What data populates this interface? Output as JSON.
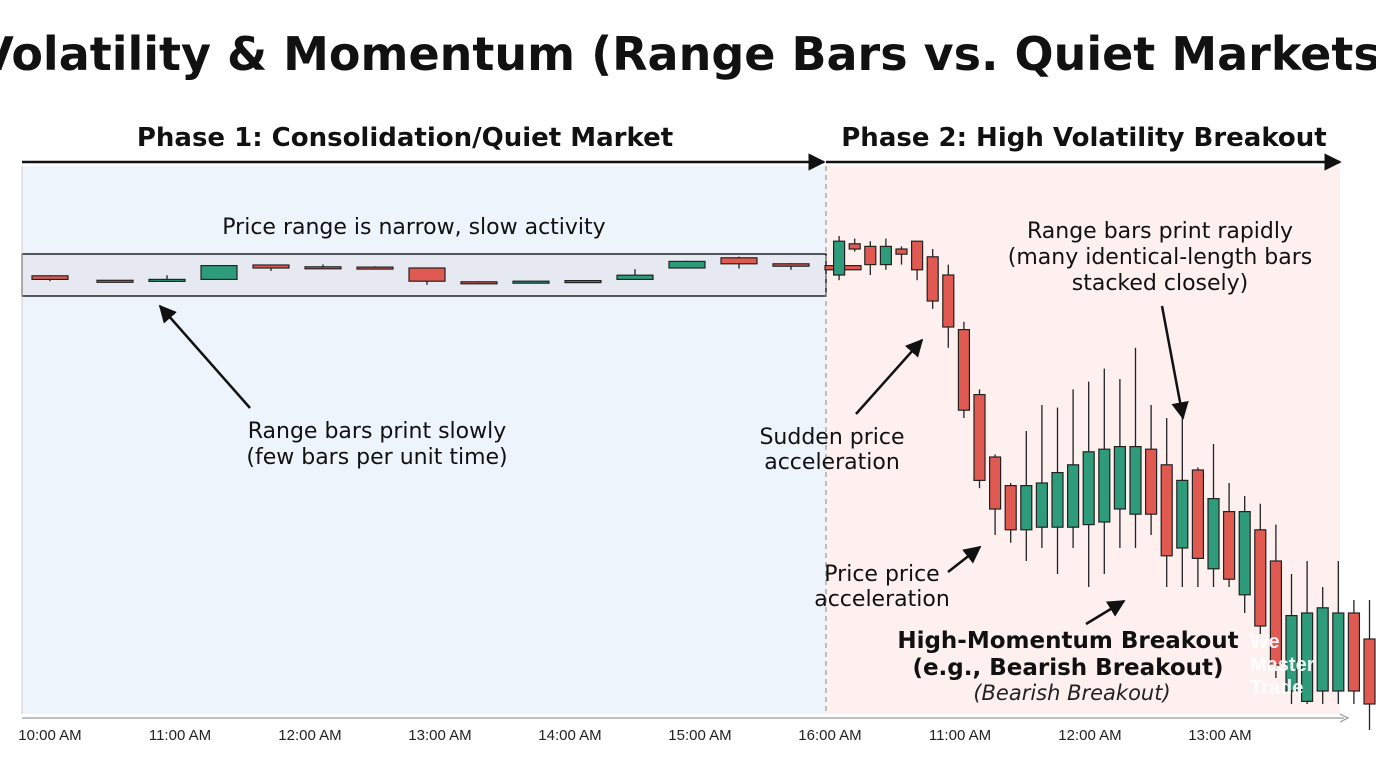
{
  "chart_data": {
    "type": "candlestick",
    "title": "Volatility & Momentum (Range Bars vs. Quiet Markets)",
    "colors": {
      "up": "#2e9c7a",
      "down": "#e05a52",
      "phase1_bg": "#eef4fb",
      "phase2_bg": "#fdf0ef",
      "band": "#e6e9f1"
    },
    "phases": [
      {
        "label": "Phase 1: Consolidation/Quiet Market"
      },
      {
        "label": "Phase 2: High Volatility Breakout"
      }
    ],
    "x_tick_labels": [
      "10:00 AM",
      "11:00 AM",
      "12:00 AM",
      "13:00 AM",
      "14:00 AM",
      "15:00 AM",
      "16:00 AM",
      "11:00 AM",
      "12:00 AM",
      "13:00 AM"
    ],
    "annotations": {
      "narrow": "Price range is narrow, slow activity",
      "slow_1": "Range bars print slowly",
      "slow_2": "(few bars per unit time)",
      "rapid_1": "Range bars print rapidly",
      "rapid_2": "(many identical-length bars",
      "rapid_3": "stacked closely)",
      "sudden_1": "Sudden price",
      "sudden_2": "acceleration",
      "price_1": "Price price",
      "price_2": "acceleration",
      "breakout_1": "High-Momentum Breakout",
      "breakout_2": "(e.g., Bearish Breakout)",
      "breakout_3": "(Bearish Breakout)"
    },
    "phase1_candles": [
      {
        "x": 0.0,
        "o": 99.2,
        "c": 98.6,
        "h": 99.3,
        "l": 98.3
      },
      {
        "x": 0.5,
        "o": 98.45,
        "c": 98.35,
        "h": 98.5,
        "l": 98.1
      },
      {
        "x": 0.9,
        "o": 98.3,
        "c": 98.6,
        "h": 99.3,
        "l": 98.3
      },
      {
        "x": 1.3,
        "o": 98.6,
        "c": 100.9,
        "h": 100.9,
        "l": 98.6
      },
      {
        "x": 1.7,
        "o": 101.0,
        "c": 100.5,
        "h": 101.0,
        "l": 100.0
      },
      {
        "x": 2.1,
        "o": 100.7,
        "c": 100.6,
        "h": 101.1,
        "l": 100.5
      },
      {
        "x": 2.5,
        "o": 100.65,
        "c": 100.55,
        "h": 100.8,
        "l": 100.5
      },
      {
        "x": 2.9,
        "o": 100.5,
        "c": 98.3,
        "h": 100.5,
        "l": 97.7
      },
      {
        "x": 3.3,
        "o": 98.2,
        "c": 98.1,
        "h": 98.3,
        "l": 98.0
      },
      {
        "x": 3.7,
        "o": 98.2,
        "c": 98.3,
        "h": 98.4,
        "l": 98.1
      },
      {
        "x": 4.1,
        "o": 98.3,
        "c": 98.4,
        "h": 98.5,
        "l": 98.2
      },
      {
        "x": 4.5,
        "o": 98.6,
        "c": 99.3,
        "h": 100.3,
        "l": 98.6
      },
      {
        "x": 4.9,
        "o": 100.5,
        "c": 101.6,
        "h": 101.7,
        "l": 100.5
      },
      {
        "x": 5.3,
        "o": 102.2,
        "c": 101.2,
        "h": 102.4,
        "l": 100.4
      },
      {
        "x": 5.7,
        "o": 101.2,
        "c": 100.8,
        "h": 101.3,
        "l": 100.2
      },
      {
        "x": 6.1,
        "o": 100.9,
        "c": 100.2,
        "h": 101.0,
        "l": 100.0
      }
    ],
    "phase2_candles": [
      {
        "x": 6.07,
        "o": 100,
        "c": 113,
        "h": 115,
        "l": 98
      },
      {
        "x": 6.19,
        "o": 112,
        "c": 110,
        "h": 114,
        "l": 109
      },
      {
        "x": 6.31,
        "o": 111,
        "c": 104,
        "h": 113,
        "l": 100
      },
      {
        "x": 6.43,
        "o": 104,
        "c": 111,
        "h": 114,
        "l": 102
      },
      {
        "x": 6.55,
        "o": 110,
        "c": 108,
        "h": 111,
        "l": 104
      },
      {
        "x": 6.67,
        "o": 113,
        "c": 102,
        "h": 113,
        "l": 98
      },
      {
        "x": 6.79,
        "o": 107,
        "c": 90,
        "h": 110,
        "l": 87
      },
      {
        "x": 6.91,
        "o": 100,
        "c": 80,
        "h": 104,
        "l": 72
      },
      {
        "x": 7.03,
        "o": 79,
        "c": 48,
        "h": 82,
        "l": 45
      },
      {
        "x": 7.15,
        "o": 54,
        "c": 21,
        "h": 56,
        "l": 18
      },
      {
        "x": 7.27,
        "o": 30,
        "c": 10,
        "h": 31,
        "l": 0
      },
      {
        "x": 7.39,
        "o": 19,
        "c": 2,
        "h": 20,
        "l": -3
      },
      {
        "x": 7.51,
        "o": 2,
        "c": 19,
        "h": 40,
        "l": -10
      },
      {
        "x": 7.63,
        "o": 3,
        "c": 20,
        "h": 50,
        "l": -5
      },
      {
        "x": 7.75,
        "o": 3,
        "c": 24,
        "h": 49,
        "l": -15
      },
      {
        "x": 7.87,
        "o": 3,
        "c": 27,
        "h": 56,
        "l": -5
      },
      {
        "x": 7.99,
        "o": 4,
        "c": 32,
        "h": 59,
        "l": -20
      },
      {
        "x": 8.11,
        "o": 5,
        "c": 33,
        "h": 64,
        "l": -15
      },
      {
        "x": 8.23,
        "o": 10,
        "c": 34,
        "h": 60,
        "l": -5
      },
      {
        "x": 8.35,
        "o": 8,
        "c": 34,
        "h": 72,
        "l": -5
      },
      {
        "x": 8.47,
        "o": 33,
        "c": 8,
        "h": 50,
        "l": 0
      },
      {
        "x": 8.59,
        "o": 27,
        "c": -8,
        "h": 45,
        "l": -20
      },
      {
        "x": 8.71,
        "o": -5,
        "c": 21,
        "h": 50,
        "l": -20
      },
      {
        "x": 8.83,
        "o": 25,
        "c": -9,
        "h": 26,
        "l": -20
      },
      {
        "x": 8.95,
        "o": -13,
        "c": 14,
        "h": 35,
        "l": -20
      },
      {
        "x": 9.07,
        "o": 9,
        "c": -17,
        "h": 20,
        "l": -20
      },
      {
        "x": 9.19,
        "o": -23,
        "c": 9,
        "h": 15,
        "l": -30
      },
      {
        "x": 9.31,
        "o": 2,
        "c": -35,
        "h": 12,
        "l": -40
      },
      {
        "x": 9.43,
        "o": -10,
        "c": -50,
        "h": 4,
        "l": -55
      },
      {
        "x": 9.55,
        "o": -60,
        "c": -31,
        "h": -15,
        "l": -65
      },
      {
        "x": 9.67,
        "o": -64,
        "c": -30,
        "h": -10,
        "l": -65
      },
      {
        "x": 9.79,
        "o": -60,
        "c": -28,
        "h": -20,
        "l": -65
      },
      {
        "x": 9.91,
        "o": -60,
        "c": -30,
        "h": -10,
        "l": -65
      },
      {
        "x": 10.03,
        "o": -30,
        "c": -60,
        "h": -25,
        "l": -65
      },
      {
        "x": 10.15,
        "o": -40,
        "c": -65,
        "h": -25,
        "l": -75
      }
    ],
    "watermark": [
      "We",
      "Master",
      "Trade"
    ]
  }
}
